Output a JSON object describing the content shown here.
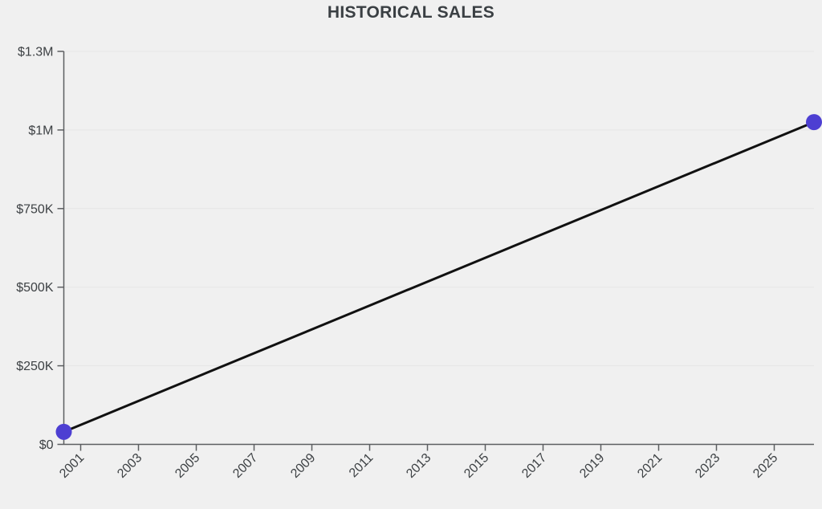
{
  "page": {
    "background": "#f0f0f0"
  },
  "header": {
    "title": "HISTORICAL SALES"
  },
  "chart_data": {
    "type": "line",
    "title": "HISTORICAL SALES",
    "series": [
      {
        "name": "sales",
        "points": [
          {
            "year": 2000,
            "value": 40000
          },
          {
            "year": 2026,
            "value": 1025000
          }
        ]
      }
    ],
    "x_axis": {
      "min": 2000,
      "max": 2026,
      "tick_values": [
        2001,
        2003,
        2005,
        2007,
        2009,
        2011,
        2013,
        2015,
        2017,
        2019,
        2021,
        2023,
        2025
      ],
      "tick_labels": [
        "2001",
        "2003",
        "2005",
        "2007",
        "2009",
        "2011",
        "2013",
        "2015",
        "2017",
        "2019",
        "2021",
        "2023",
        "2025"
      ],
      "label_rotation_deg": -45
    },
    "y_axis": {
      "min": 0,
      "max": 1300000,
      "tick_values": [
        0,
        250000,
        500000,
        750000,
        1000000,
        1300000
      ],
      "tick_labels": [
        "$0",
        "$250K",
        "$500K",
        "$750K",
        "$1M",
        "$1.3M"
      ]
    },
    "grid": "horizontal",
    "legend_position": "none",
    "colors": {
      "line": "#111111",
      "point": "#4d3fd2",
      "axis": "#5c5e61",
      "grid": "#e6e6e6",
      "label": "#3d4144",
      "title": "#3a3f43",
      "background": "#f0f0f0"
    }
  }
}
